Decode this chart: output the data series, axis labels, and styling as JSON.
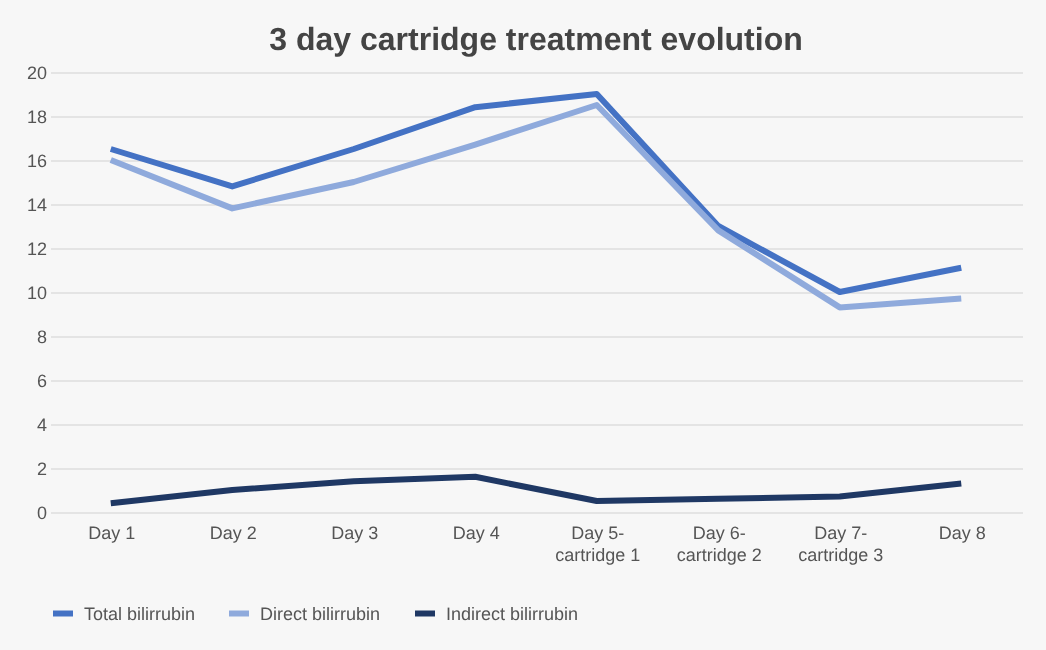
{
  "chart_data": {
    "type": "line",
    "title": "3 day cartridge treatment evolution",
    "categories": [
      "Day 1",
      "Day 2",
      "Day 3",
      "Day 4",
      "Day 5- cartridge 1",
      "Day 6- cartridge 2",
      "Day 7- cartridge 3",
      "Day 8"
    ],
    "series": [
      {
        "name": "Total bilirrubin",
        "color": "#4472c4",
        "values": [
          16.5,
          14.8,
          16.5,
          18.4,
          19.0,
          13.0,
          10.0,
          11.1
        ]
      },
      {
        "name": "Direct bilirrubin",
        "color": "#8faadc",
        "values": [
          16.0,
          13.8,
          15.0,
          16.7,
          18.5,
          12.8,
          9.3,
          9.7
        ]
      },
      {
        "name": "Indirect bilirrubin",
        "color": "#1f3864",
        "values": [
          0.4,
          1.0,
          1.4,
          1.6,
          0.5,
          0.6,
          0.7,
          1.3
        ]
      }
    ],
    "ylim": [
      0,
      20
    ],
    "yticks": [
      0,
      2,
      4,
      6,
      8,
      10,
      12,
      14,
      16,
      18,
      20
    ],
    "grid": "y",
    "legend": "bottom",
    "marker": "none",
    "line_style": "solid"
  }
}
